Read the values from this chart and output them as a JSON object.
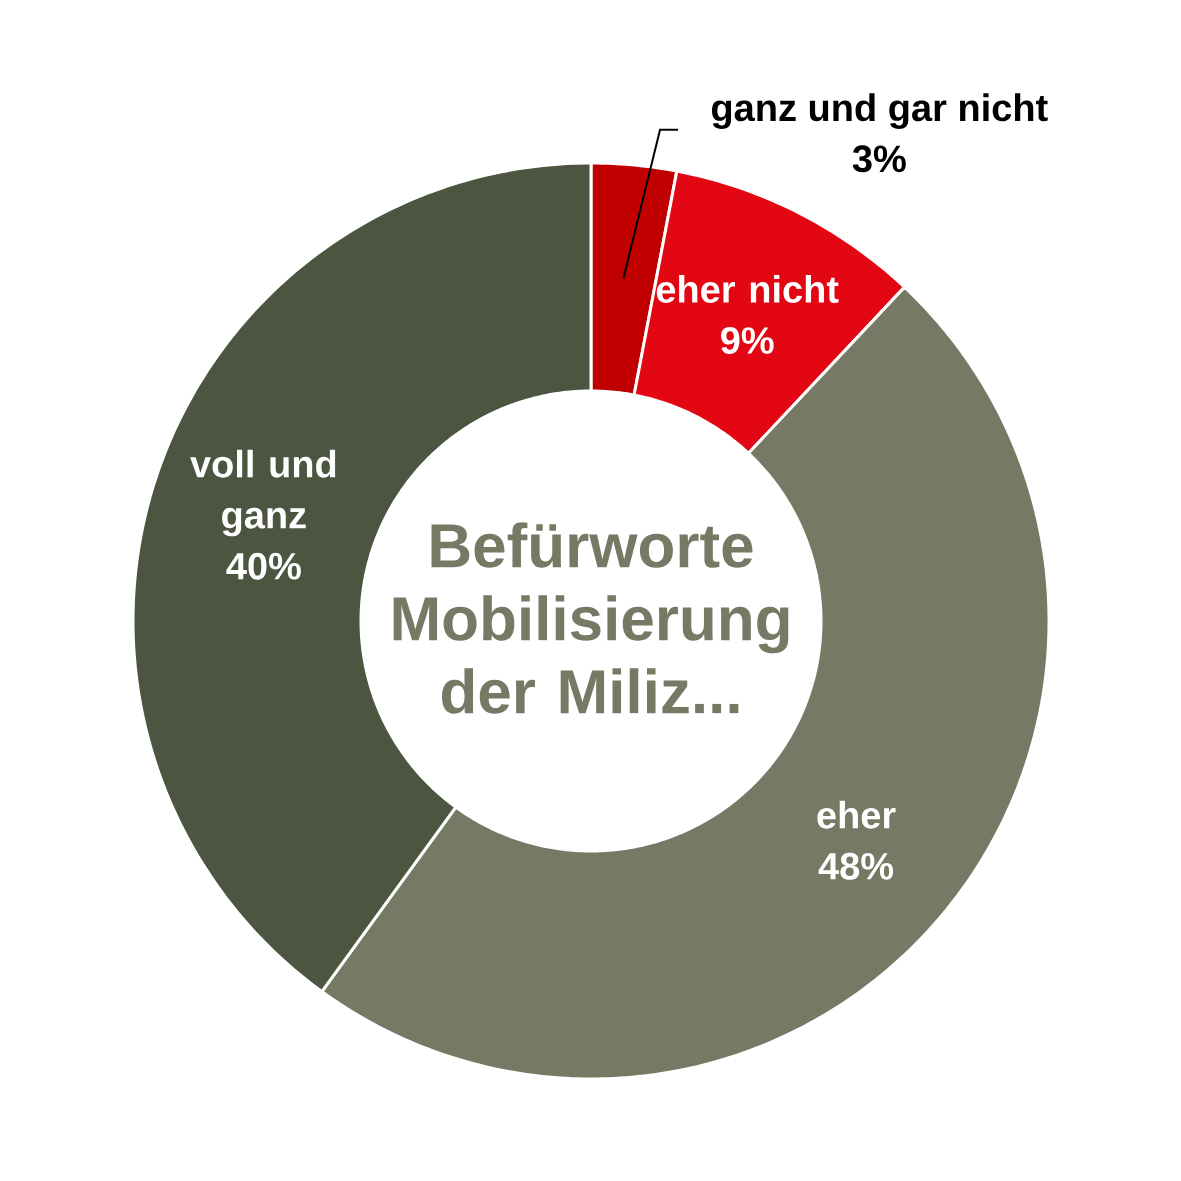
{
  "chart_data": {
    "type": "donut",
    "title": "Befürworte Mobilisierung der Miliz...",
    "categories": [
      "ganz und gar nicht",
      "eher nicht",
      "eher",
      "voll und ganz"
    ],
    "values": [
      3,
      9,
      48,
      40
    ],
    "colors": [
      "#c00000",
      "#e30613",
      "#767a65",
      "#4b5540"
    ],
    "value_labels": [
      "3%",
      "9%",
      "48%",
      "40%"
    ]
  }
}
